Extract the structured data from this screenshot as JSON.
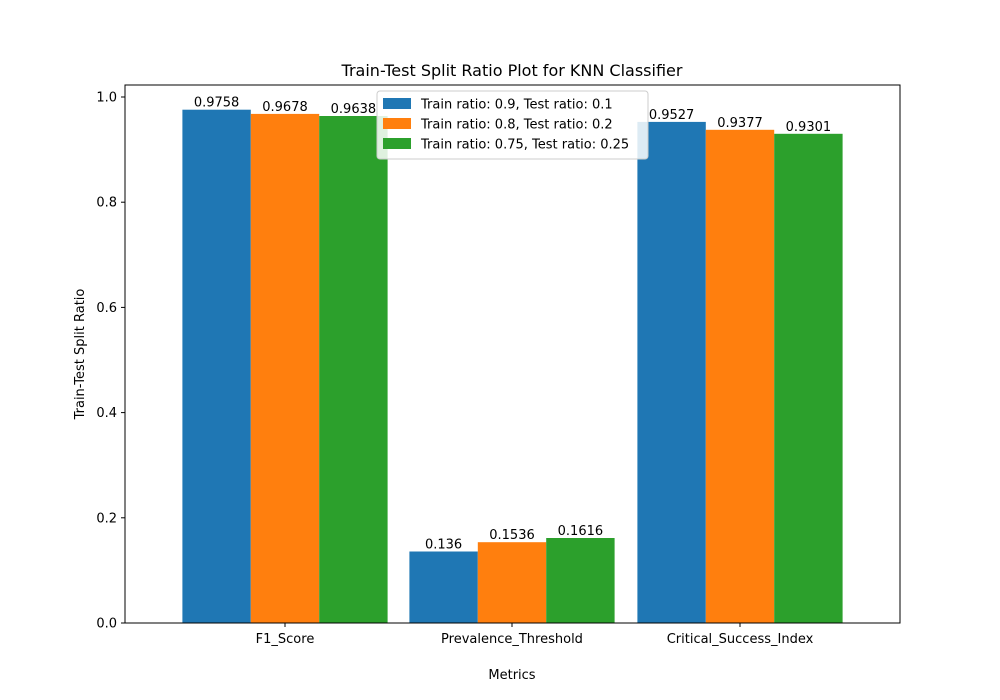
{
  "chart_data": {
    "type": "bar",
    "title": "Train-Test Split Ratio Plot for KNN Classifier",
    "xlabel": "Metrics",
    "ylabel": "Train-Test Split Ratio",
    "categories": [
      "F1_Score",
      "Prevalence_Threshold",
      "Critical_Success_Index"
    ],
    "series": [
      {
        "name": "Train ratio: 0.9, Test ratio: 0.1",
        "color": "#1f77b4",
        "values": [
          0.9758,
          0.136,
          0.9527
        ],
        "labels": [
          "0.9758",
          "0.136",
          "0.9527"
        ]
      },
      {
        "name": "Train ratio: 0.8, Test ratio: 0.2",
        "color": "#ff7f0e",
        "values": [
          0.9678,
          0.1536,
          0.9377
        ],
        "labels": [
          "0.9678",
          "0.1536",
          "0.9377"
        ]
      },
      {
        "name": "Train ratio: 0.75, Test ratio: 0.25",
        "color": "#2ca02c",
        "values": [
          0.9638,
          0.1616,
          0.9301
        ],
        "labels": [
          "0.9638",
          "0.1616",
          "0.9301"
        ]
      }
    ],
    "ylim": [
      0,
      1.0
    ],
    "yticks": [
      "0.0",
      "0.2",
      "0.4",
      "0.6",
      "0.8",
      "1.0"
    ],
    "grid": false,
    "legend_position": "top-center"
  }
}
